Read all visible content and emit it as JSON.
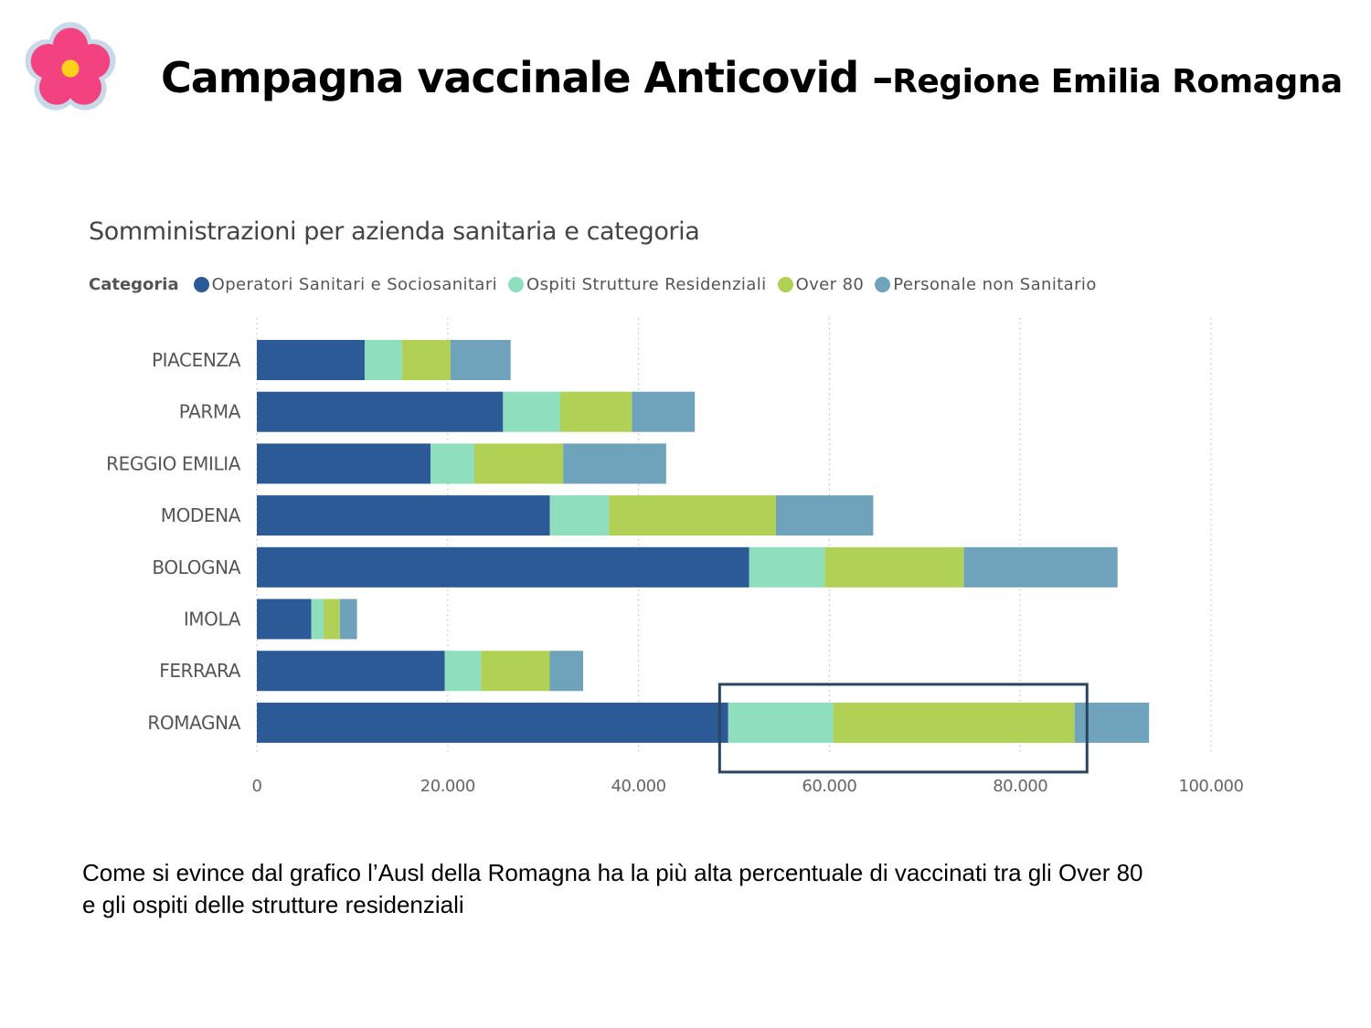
{
  "slide": {
    "title_main": "Campagna vaccinale Anticovid –",
    "title_sub": "Regione Emilia Romagna",
    "caption_line1": "Come si evince dal grafico l’Ausl della Romagna ha la più alta percentuale di vaccinati tra gli Over 80",
    "caption_line2": "e gli ospiti delle strutture residenziali",
    "logo_icon": "pink-flower-icon"
  },
  "chart_data": {
    "type": "bar",
    "orientation": "horizontal",
    "stacked": true,
    "title": "Somministrazioni per azienda sanitaria e categoria",
    "legend_title": "Categoria",
    "legend_position": "top-left",
    "categories": [
      "PIACENZA",
      "PARMA",
      "REGGIO EMILIA",
      "MODENA",
      "BOLOGNA",
      "IMOLA",
      "FERRARA",
      "ROMAGNA"
    ],
    "series": [
      {
        "name": "Operatori Sanitari e Sociosanitari",
        "color": "#2b5a96",
        "values": [
          11300,
          25800,
          18200,
          30700,
          51600,
          5700,
          19700,
          49400
        ]
      },
      {
        "name": "Ospiti Strutture Residenziali",
        "color": "#8fdfbf",
        "values": [
          3900,
          6000,
          4600,
          6200,
          7900,
          1300,
          3800,
          11000
        ]
      },
      {
        "name": "Over 80",
        "color": "#b0d056",
        "values": [
          5100,
          7500,
          9300,
          17500,
          14600,
          1700,
          7200,
          25300
        ]
      },
      {
        "name": "Personale non Sanitario",
        "color": "#6fa3bb",
        "values": [
          6300,
          6600,
          10800,
          10200,
          16100,
          1800,
          3500,
          7800
        ]
      }
    ],
    "xlim": [
      0,
      100000
    ],
    "xticks": [
      0,
      20000,
      40000,
      60000,
      80000,
      100000
    ],
    "xtick_labels": [
      "0",
      "20.000",
      "40.000",
      "60.000",
      "80.000",
      "100.000"
    ],
    "grid": true,
    "highlight": {
      "category": "ROMAGNA",
      "x_range": [
        48500,
        87000
      ]
    }
  }
}
